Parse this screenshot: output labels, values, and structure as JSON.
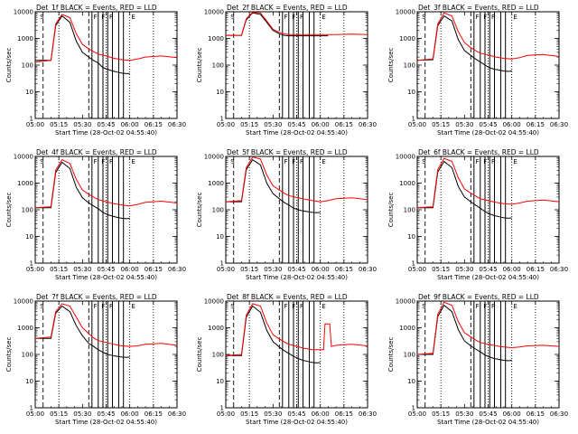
{
  "colors": {
    "events": "#000000",
    "lld": "#ff0000",
    "frame": "#000000",
    "background": "#ffffff"
  },
  "chart_data": [
    {
      "type": "line",
      "title": "Det_1f BLACK = Events, RED = LLD",
      "xlabel": "Start Time (28-Oct-02 04:55:40)",
      "ylabel": "Counts/sec",
      "ylog": true,
      "ylim": [
        1,
        10000
      ],
      "xtick_labels": [
        "05:00",
        "05:15",
        "05:30",
        "05:45",
        "06:00",
        "06:15",
        "06:30"
      ],
      "ytick_labels": [
        "1",
        "10",
        "100",
        "1000",
        "10000"
      ],
      "markers": [
        "S",
        "F",
        "F",
        "F",
        "E"
      ],
      "series": [
        {
          "name": "Events",
          "x": [
            0,
            10,
            13,
            17,
            22,
            26,
            30,
            34,
            37,
            40,
            43,
            46,
            49,
            52,
            55,
            58,
            60
          ],
          "y": [
            150,
            150,
            3000,
            7000,
            4000,
            800,
            300,
            200,
            150,
            120,
            80,
            70,
            60,
            55,
            50,
            48,
            48
          ]
        },
        {
          "name": "LLD",
          "x": [
            0,
            10,
            13,
            17,
            22,
            26,
            30,
            34,
            37,
            40,
            45,
            50,
            55,
            60,
            65,
            70,
            80,
            90
          ],
          "y": [
            130,
            150,
            3500,
            8000,
            6000,
            1500,
            600,
            400,
            320,
            260,
            220,
            180,
            160,
            150,
            170,
            200,
            220,
            190
          ]
        }
      ]
    },
    {
      "type": "line",
      "title": "Det_2f BLACK = Events, RED = LLD",
      "xlabel": "Start Time (28-Oct-02 04:55:40)",
      "ylabel": "Counts/sec",
      "ylog": true,
      "ylim": [
        1,
        10000
      ],
      "xtick_labels": [
        "05:00",
        "05:15",
        "05:30",
        "05:45",
        "06:00",
        "06:15",
        "06:30"
      ],
      "ytick_labels": [
        "1",
        "10",
        "100",
        "1000",
        "10000"
      ],
      "markers": [
        "S",
        "F",
        "F",
        "F",
        "E"
      ],
      "series": [
        {
          "name": "Events",
          "x": [
            0,
            10,
            13,
            17,
            22,
            26,
            30,
            34,
            37,
            40,
            45,
            50,
            55,
            60,
            65
          ],
          "y": [
            1300,
            1300,
            5000,
            9000,
            8000,
            4000,
            2000,
            1500,
            1300,
            1250,
            1250,
            1250,
            1250,
            1250,
            1250
          ]
        },
        {
          "name": "LLD",
          "x": [
            0,
            10,
            13,
            17,
            22,
            26,
            30,
            34,
            37,
            40,
            45,
            50,
            60,
            70,
            80,
            90
          ],
          "y": [
            1300,
            1300,
            5500,
            9500,
            9000,
            4500,
            2200,
            1700,
            1500,
            1400,
            1400,
            1400,
            1400,
            1400,
            1450,
            1400
          ]
        }
      ]
    },
    {
      "type": "line",
      "title": "Det_3f BLACK = Events, RED = LLD",
      "xlabel": "Start Time (28-Oct-02 04:55:40)",
      "ylabel": "Counts/sec",
      "ylog": true,
      "ylim": [
        1,
        10000
      ],
      "xtick_labels": [
        "05:00",
        "05:15",
        "05:30",
        "05:45",
        "06:00",
        "06:15",
        "06:30"
      ],
      "ytick_labels": [
        "1",
        "10",
        "100",
        "1000",
        "10000"
      ],
      "markers": [
        "S",
        "F",
        "F",
        "F",
        "E"
      ],
      "series": [
        {
          "name": "Events",
          "x": [
            0,
            10,
            13,
            17,
            22,
            26,
            30,
            34,
            37,
            40,
            43,
            46,
            49,
            52,
            55,
            58,
            60
          ],
          "y": [
            150,
            160,
            3000,
            7000,
            4500,
            900,
            350,
            230,
            170,
            130,
            100,
            80,
            70,
            65,
            60,
            58,
            60
          ]
        },
        {
          "name": "LLD",
          "x": [
            0,
            10,
            13,
            17,
            22,
            26,
            30,
            34,
            37,
            40,
            45,
            50,
            55,
            60,
            65,
            70,
            80,
            90
          ],
          "y": [
            150,
            170,
            3500,
            9000,
            7000,
            1800,
            700,
            450,
            350,
            280,
            240,
            200,
            180,
            170,
            190,
            230,
            250,
            210
          ]
        }
      ]
    },
    {
      "type": "line",
      "title": "Det_4f BLACK = Events, RED = LLD",
      "xlabel": "Start Time (28-Oct-02 04:55:40)",
      "ylabel": "Counts/sec",
      "ylog": true,
      "ylim": [
        1,
        10000
      ],
      "xtick_labels": [
        "05:00",
        "05:15",
        "05:30",
        "05:45",
        "06:00",
        "06:15",
        "06:30"
      ],
      "ytick_labels": [
        "1",
        "10",
        "100",
        "1000",
        "10000"
      ],
      "markers": [
        "S",
        "F",
        "F",
        "F",
        "E"
      ],
      "series": [
        {
          "name": "Events",
          "x": [
            0,
            10,
            13,
            17,
            22,
            26,
            30,
            34,
            37,
            40,
            43,
            46,
            49,
            52,
            55,
            58,
            60
          ],
          "y": [
            120,
            120,
            2500,
            6000,
            3500,
            700,
            280,
            180,
            140,
            110,
            80,
            65,
            58,
            52,
            48,
            46,
            48
          ]
        },
        {
          "name": "LLD",
          "x": [
            0,
            10,
            13,
            17,
            22,
            26,
            30,
            34,
            37,
            40,
            45,
            50,
            55,
            60,
            65,
            70,
            80,
            90
          ],
          "y": [
            120,
            130,
            3000,
            7500,
            5500,
            1400,
            550,
            380,
            300,
            240,
            200,
            170,
            150,
            140,
            160,
            190,
            210,
            180
          ]
        }
      ]
    },
    {
      "type": "line",
      "title": "Det_5f BLACK = Events, RED = LLD",
      "xlabel": "Start Time (28-Oct-02 04:55:40)",
      "ylabel": "Counts/sec",
      "ylog": true,
      "ylim": [
        1,
        10000
      ],
      "xtick_labels": [
        "05:00",
        "05:15",
        "05:30",
        "05:45",
        "06:00",
        "06:15",
        "06:30"
      ],
      "ytick_labels": [
        "1",
        "10",
        "100",
        "1000",
        "10000"
      ],
      "markers": [
        "S",
        "F",
        "F",
        "F",
        "E"
      ],
      "series": [
        {
          "name": "Events",
          "x": [
            0,
            10,
            13,
            17,
            22,
            26,
            30,
            34,
            37,
            40,
            43,
            46,
            49,
            52,
            55,
            58,
            60
          ],
          "y": [
            200,
            200,
            3200,
            7500,
            4800,
            1000,
            400,
            260,
            190,
            150,
            115,
            100,
            90,
            85,
            80,
            78,
            80
          ]
        },
        {
          "name": "LLD",
          "x": [
            0,
            10,
            13,
            17,
            22,
            26,
            30,
            34,
            37,
            40,
            45,
            50,
            55,
            60,
            65,
            70,
            80,
            90
          ],
          "y": [
            200,
            220,
            3800,
            9500,
            8000,
            2000,
            800,
            550,
            420,
            340,
            290,
            250,
            220,
            200,
            220,
            260,
            280,
            240
          ]
        }
      ]
    },
    {
      "type": "line",
      "title": "Det_6f BLACK = Events, RED = LLD",
      "xlabel": "Start Time (28-Oct-02 04:55:40)",
      "ylabel": "Counts/sec",
      "ylog": true,
      "ylim": [
        1,
        10000
      ],
      "xtick_labels": [
        "05:00",
        "05:15",
        "05:30",
        "05:45",
        "06:00",
        "06:15",
        "06:30"
      ],
      "ytick_labels": [
        "1",
        "10",
        "100",
        "1000",
        "10000"
      ],
      "markers": [
        "S",
        "F",
        "F",
        "F",
        "E"
      ],
      "series": [
        {
          "name": "Events",
          "x": [
            0,
            10,
            13,
            17,
            22,
            26,
            30,
            34,
            37,
            40,
            43,
            46,
            49,
            52,
            55,
            58,
            60
          ],
          "y": [
            120,
            120,
            2600,
            6500,
            3800,
            750,
            300,
            200,
            150,
            115,
            85,
            70,
            60,
            55,
            50,
            48,
            50
          ]
        },
        {
          "name": "LLD",
          "x": [
            0,
            10,
            13,
            17,
            22,
            26,
            30,
            34,
            37,
            40,
            45,
            50,
            55,
            60,
            65,
            70,
            80,
            90
          ],
          "y": [
            120,
            130,
            3200,
            8500,
            6500,
            1600,
            600,
            420,
            330,
            260,
            220,
            190,
            170,
            160,
            180,
            210,
            230,
            200
          ]
        }
      ]
    },
    {
      "type": "line",
      "title": "Det_7f BLACK = Events, RED = LLD",
      "xlabel": "Start Time (28-Oct-02 04:55:40)",
      "ylabel": "Counts/sec",
      "ylog": true,
      "ylim": [
        1,
        10000
      ],
      "xtick_labels": [
        "05:00",
        "05:15",
        "05:30",
        "05:45",
        "06:00",
        "06:15",
        "06:30"
      ],
      "ytick_labels": [
        "1",
        "10",
        "100",
        "1000",
        "10000"
      ],
      "markers": [
        "S",
        "F",
        "F",
        "F",
        "E"
      ],
      "series": [
        {
          "name": "Events",
          "x": [
            0,
            10,
            13,
            17,
            22,
            26,
            30,
            34,
            37,
            40,
            43,
            46,
            49,
            52,
            55,
            58,
            60
          ],
          "y": [
            400,
            400,
            3500,
            6500,
            4000,
            1200,
            500,
            260,
            200,
            150,
            120,
            100,
            90,
            85,
            80,
            78,
            80
          ]
        },
        {
          "name": "LLD",
          "x": [
            0,
            10,
            13,
            17,
            22,
            26,
            30,
            34,
            37,
            40,
            45,
            50,
            55,
            60,
            65,
            70,
            80,
            90
          ],
          "y": [
            400,
            450,
            4000,
            8000,
            6500,
            2500,
            1000,
            600,
            420,
            330,
            280,
            240,
            210,
            200,
            210,
            240,
            260,
            220
          ]
        }
      ]
    },
    {
      "type": "line",
      "title": "Det_8f BLACK = Events, RED = LLD",
      "xlabel": "Start Time (28-Oct-02 04:55:40)",
      "ylabel": "Counts/sec",
      "ylog": true,
      "ylim": [
        1,
        10000
      ],
      "xtick_labels": [
        "05:00",
        "05:15",
        "05:30",
        "05:45",
        "06:00",
        "06:15",
        "06:30"
      ],
      "ytick_labels": [
        "1",
        "10",
        "100",
        "1000",
        "10000"
      ],
      "markers": [
        "S",
        "F",
        "F",
        "F",
        "E"
      ],
      "series": [
        {
          "name": "Events",
          "x": [
            0,
            10,
            13,
            17,
            22,
            26,
            30,
            34,
            37,
            40,
            43,
            46,
            49,
            52,
            55,
            58,
            60
          ],
          "y": [
            90,
            90,
            2500,
            6500,
            3800,
            800,
            300,
            190,
            140,
            110,
            85,
            70,
            60,
            55,
            50,
            48,
            50
          ]
        },
        {
          "name": "LLD",
          "x": [
            0,
            10,
            13,
            17,
            22,
            26,
            30,
            34,
            37,
            40,
            45,
            50,
            55,
            60,
            62,
            63,
            66,
            67,
            70,
            80,
            90
          ],
          "y": [
            90,
            100,
            3000,
            8000,
            6500,
            1500,
            550,
            380,
            300,
            240,
            200,
            170,
            150,
            150,
            150,
            1400,
            1400,
            200,
            220,
            240,
            210
          ]
        }
      ]
    },
    {
      "type": "line",
      "title": "Det_9f BLACK = Events, RED = LLD",
      "xlabel": "Start Time (28-Oct-02 04:55:40)",
      "ylabel": "Counts/sec",
      "ylog": true,
      "ylim": [
        1,
        10000
      ],
      "xtick_labels": [
        "05:00",
        "05:15",
        "05:30",
        "05:45",
        "06:00",
        "06:15",
        "06:30"
      ],
      "ytick_labels": [
        "1",
        "10",
        "100",
        "1000",
        "10000"
      ],
      "markers": [
        "S",
        "F",
        "F",
        "F",
        "E"
      ],
      "series": [
        {
          "name": "Events",
          "x": [
            0,
            10,
            13,
            17,
            22,
            26,
            30,
            34,
            37,
            40,
            43,
            46,
            49,
            52,
            55,
            58,
            60
          ],
          "y": [
            100,
            100,
            2600,
            7000,
            4000,
            850,
            320,
            210,
            160,
            125,
            95,
            80,
            70,
            65,
            60,
            58,
            60
          ]
        },
        {
          "name": "LLD",
          "x": [
            0,
            10,
            13,
            17,
            22,
            26,
            30,
            34,
            37,
            40,
            45,
            50,
            55,
            60,
            65,
            70,
            80,
            90
          ],
          "y": [
            100,
            110,
            3200,
            9000,
            7000,
            1700,
            650,
            450,
            350,
            280,
            240,
            210,
            190,
            180,
            190,
            210,
            220,
            200
          ]
        }
      ]
    }
  ]
}
